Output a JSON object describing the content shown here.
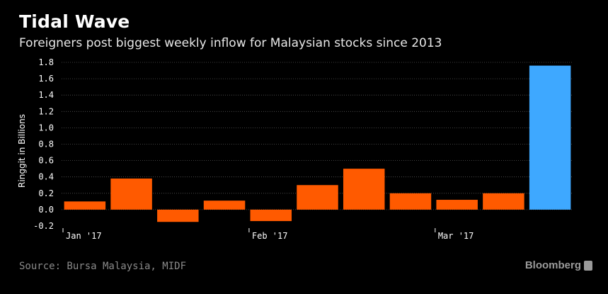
{
  "header": {
    "title": "Tidal Wave",
    "subtitle": "Foreigners post biggest weekly inflow for Malaysian stocks since 2013"
  },
  "footer": {
    "source": "Source: Bursa Malaysia, MIDF",
    "brand": "Bloomberg"
  },
  "chart_data": {
    "type": "bar",
    "title": "Tidal Wave",
    "subtitle": "Foreigners post biggest weekly inflow for Malaysian stocks since 2013",
    "xlabel": "",
    "ylabel": "Ringgit in Billions",
    "ylim": [
      -0.2,
      1.8
    ],
    "yticks": [
      -0.2,
      0.0,
      0.2,
      0.4,
      0.6,
      0.8,
      1.0,
      1.2,
      1.4,
      1.6,
      1.8
    ],
    "ytick_labels": [
      "-0.2",
      "0.0",
      "0.2",
      "0.4",
      "0.6",
      "0.8",
      "1.0",
      "1.2",
      "1.4",
      "1.6",
      "1.8"
    ],
    "xtick_labels": [
      "Jan '17",
      "Feb '17",
      "Mar '17"
    ],
    "xtick_positions": [
      0,
      4,
      8
    ],
    "values": [
      0.1,
      0.38,
      -0.15,
      0.11,
      -0.14,
      0.3,
      0.5,
      0.2,
      0.12,
      0.2,
      1.76
    ],
    "highlight_index": 10,
    "colors": {
      "bar": "#ff5a00",
      "highlight": "#3ea8ff",
      "grid": "#555555"
    },
    "grid": true
  }
}
